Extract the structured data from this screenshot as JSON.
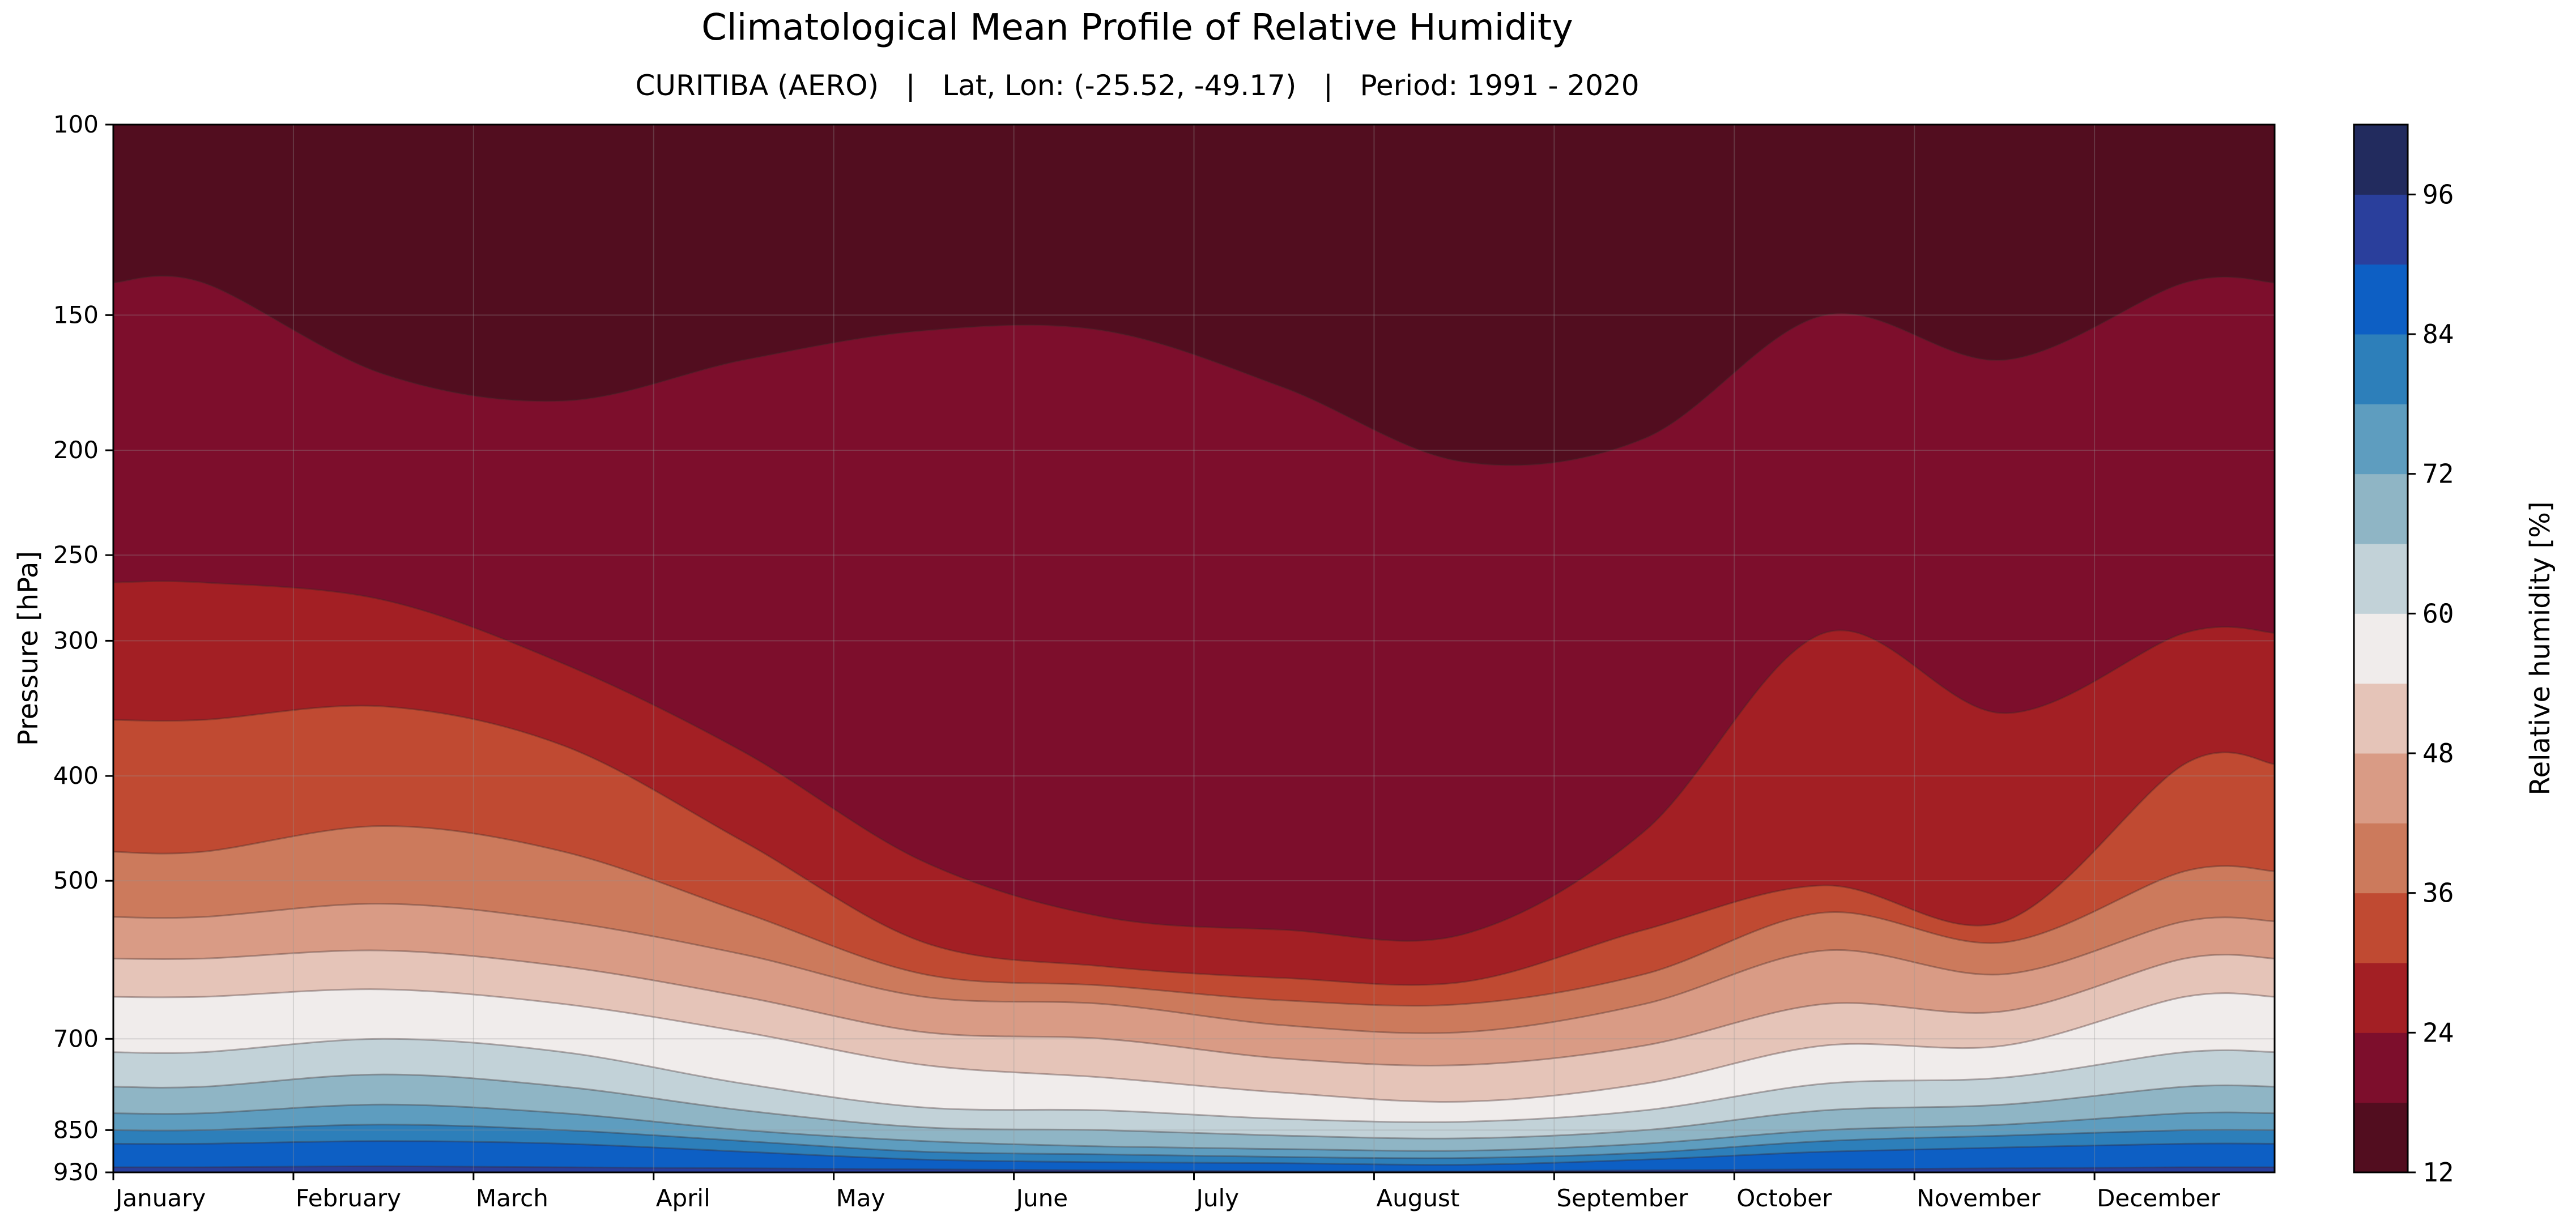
{
  "chart_data": {
    "type": "heatmap",
    "title": "Climatological Mean Profile of Relative Humidity",
    "subtitle": "CURITIBA (AERO)   |   Lat, Lon: (-25.52, -49.17)   |   Period: 1991 - 2020",
    "ylabel": "Pressure [hPa]",
    "colorbar_label": "Relative humidity [%]",
    "y_scale": "log",
    "y_inverted": true,
    "ylim": [
      930,
      100
    ],
    "yticks": [
      100,
      150,
      200,
      250,
      300,
      400,
      500,
      700,
      850,
      930
    ],
    "x_labels": [
      "January",
      "February",
      "March",
      "April",
      "May",
      "June",
      "July",
      "August",
      "September",
      "October",
      "November",
      "December"
    ],
    "grid": true,
    "colorbar_ticks": [
      12,
      24,
      36,
      48,
      60,
      72,
      84,
      96
    ],
    "levels": [
      12,
      18,
      24,
      30,
      36,
      42,
      48,
      54,
      60,
      66,
      72,
      78,
      84,
      90,
      96,
      102
    ],
    "level_colors": [
      "#520d1f",
      "#7d0e2c",
      "#a31f24",
      "#c04a32",
      "#cc7a5c",
      "#d99b85",
      "#e5c4b8",
      "#f0eceb",
      "#c2d2d8",
      "#8fb5c5",
      "#5e9dbf",
      "#2d7fba",
      "#0d5fc4",
      "#2a3f9c",
      "#222b5e"
    ],
    "boundary_pressures_hPa": {
      "months": [
        1,
        2,
        3,
        4,
        5,
        6,
        7,
        8,
        9,
        10,
        11,
        12
      ],
      "rh_18": [
        140,
        170,
        180,
        165,
        155,
        155,
        175,
        205,
        195,
        150,
        165,
        140
      ],
      "rh_24": [
        265,
        275,
        315,
        380,
        480,
        540,
        555,
        560,
        450,
        295,
        350,
        295
      ],
      "rh_30": [
        355,
        345,
        375,
        460,
        570,
        600,
        615,
        620,
        555,
        505,
        545,
        390
      ],
      "rh_36": [
        470,
        445,
        470,
        535,
        610,
        625,
        645,
        650,
        610,
        535,
        570,
        490
      ],
      "rh_42": [
        540,
        525,
        545,
        585,
        640,
        650,
        680,
        690,
        650,
        580,
        610,
        545
      ],
      "rh_48": [
        590,
        580,
        600,
        640,
        690,
        700,
        730,
        740,
        710,
        650,
        660,
        590
      ],
      "rh_54": [
        640,
        630,
        650,
        690,
        740,
        760,
        785,
        800,
        770,
        710,
        710,
        640
      ],
      "rh_60": [
        720,
        700,
        720,
        770,
        810,
        815,
        830,
        835,
        815,
        770,
        760,
        720
      ],
      "rh_66": [
        775,
        755,
        775,
        815,
        845,
        850,
        860,
        865,
        850,
        815,
        805,
        775
      ],
      "rh_72": [
        820,
        805,
        820,
        850,
        870,
        880,
        885,
        888,
        875,
        850,
        840,
        820
      ],
      "rh_78": [
        850,
        840,
        850,
        870,
        890,
        895,
        900,
        902,
        892,
        870,
        860,
        850
      ],
      "rh_84": [
        875,
        870,
        875,
        890,
        905,
        910,
        912,
        915,
        905,
        890,
        882,
        875
      ],
      "rh_90": [
        920,
        918,
        920,
        922,
        924,
        926,
        928,
        928,
        926,
        924,
        922,
        920
      ]
    }
  }
}
